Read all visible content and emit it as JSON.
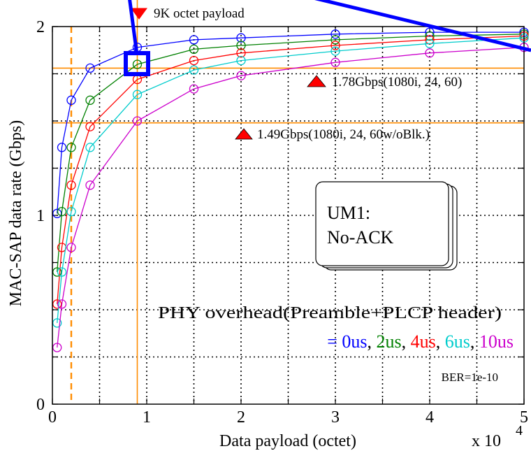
{
  "chart_data": {
    "type": "line",
    "xlabel": "Data payload (octet)",
    "ylabel": "MAC-SAP data rate (Gbps)",
    "x_multiplier_label": "x 10",
    "x_multiplier_exponent": "4",
    "xlim": [
      0,
      5
    ],
    "ylim": [
      0,
      2
    ],
    "x_ticks": [
      "0",
      "1",
      "2",
      "3",
      "4",
      "5"
    ],
    "y_ticks": [
      "0",
      "1",
      "2"
    ],
    "grid": true,
    "x": [
      0.05,
      0.1,
      0.2,
      0.4,
      0.9,
      1.5,
      2.0,
      3.0,
      4.0,
      5.0
    ],
    "series": [
      {
        "name": "0us",
        "color": "#0000ff",
        "values": [
          1.01,
          1.36,
          1.61,
          1.78,
          1.89,
          1.93,
          1.94,
          1.96,
          1.97,
          1.97
        ]
      },
      {
        "name": "2us",
        "color": "#008000",
        "values": [
          0.7,
          1.02,
          1.36,
          1.61,
          1.8,
          1.88,
          1.9,
          1.93,
          1.95,
          1.96
        ]
      },
      {
        "name": "4us",
        "color": "#ff0000",
        "values": [
          0.53,
          0.83,
          1.16,
          1.47,
          1.72,
          1.82,
          1.86,
          1.9,
          1.93,
          1.95
        ]
      },
      {
        "name": "6us",
        "color": "#00cccc",
        "values": [
          0.43,
          0.7,
          1.02,
          1.36,
          1.64,
          1.77,
          1.82,
          1.87,
          1.91,
          1.94
        ]
      },
      {
        "name": "10us",
        "color": "#cc00cc",
        "values": [
          0.3,
          0.53,
          0.83,
          1.16,
          1.5,
          1.67,
          1.74,
          1.81,
          1.86,
          1.89
        ]
      }
    ],
    "reference_lines": {
      "horizontal": [
        1.78,
        1.49
      ],
      "vertical_solid": 0.9,
      "vertical_dashed": 0.2,
      "color": "#ff8c00"
    },
    "annotations": {
      "payload_marker": {
        "text": "9K octet payload",
        "x": 0.9
      },
      "marker_a": {
        "text": "1.78Gbps(1080i, 24, 60)",
        "x": 2.8,
        "y": 1.78
      },
      "marker_b": {
        "text": "1.49Gbps(1080i, 24, 60w/oBlk.)",
        "x": 2.0,
        "y": 1.49
      },
      "highlight_point": {
        "x": 0.9,
        "y": 1.8
      }
    },
    "note_box": {
      "line1": "UM1:",
      "line2": "No-ACK"
    },
    "overhead_label": "PHY overhead(Preamble+PLCP header)",
    "overhead_prefix": "= ",
    "ber_label": "BER=1e-10"
  },
  "colors": {
    "marker": "#ff0000",
    "highlight": "#0000ff",
    "reference": "#ff8c00"
  }
}
